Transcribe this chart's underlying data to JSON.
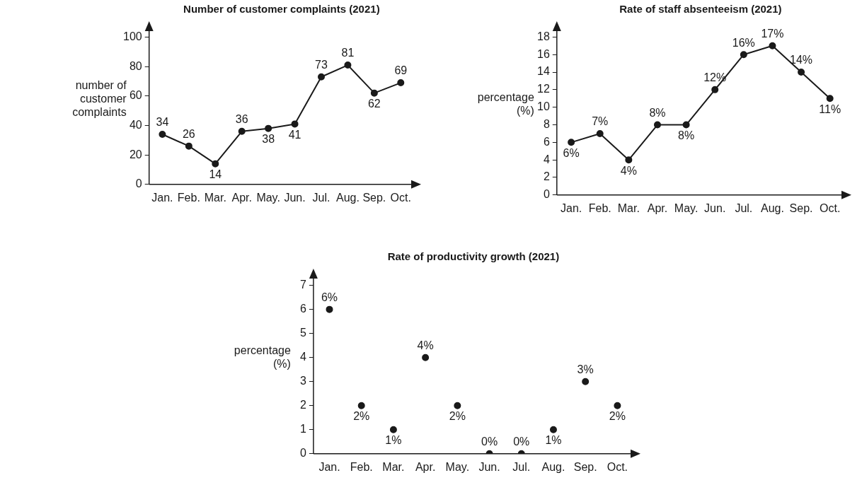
{
  "chart_data": [
    {
      "type": "line",
      "title": "Number of customer complaints (2021)",
      "ylabel": "number of customer complaints",
      "categories": [
        "Jan.",
        "Feb.",
        "Mar.",
        "Apr.",
        "May.",
        "Jun.",
        "Jul.",
        "Aug.",
        "Sep.",
        "Oct."
      ],
      "values": [
        34,
        26,
        14,
        36,
        38,
        41,
        73,
        81,
        62,
        69
      ],
      "color": "#1a1a1a",
      "ylim": [
        0,
        106
      ],
      "yticks": [
        0,
        20,
        40,
        60,
        80,
        100
      ],
      "marker": "circle",
      "line_style": "solid",
      "data_labels": true
    },
    {
      "type": "line",
      "title": "Rate of staff absenteeism (2021)",
      "ylabel": "percentage (%)",
      "categories": [
        "Jan.",
        "Feb.",
        "Mar.",
        "Apr.",
        "May.",
        "Jun.",
        "Jul.",
        "Aug.",
        "Sep.",
        "Oct."
      ],
      "values": [
        6,
        7,
        4,
        8,
        8,
        12,
        16,
        17,
        14,
        11
      ],
      "value_labels": [
        "6%",
        "7%",
        "4%",
        "8%",
        "8%",
        "12%",
        "16%",
        "17%",
        "14%",
        "11%"
      ],
      "color": "#1a1a1a",
      "ylim": [
        0,
        19
      ],
      "yticks": [
        0,
        2,
        4,
        6,
        8,
        10,
        12,
        14,
        16,
        18
      ],
      "marker": "circle",
      "line_style": "solid"
    },
    {
      "type": "scatter",
      "title": "Rate of productivity growth (2021)",
      "ylabel": "percentage (%)",
      "categories": [
        "Jan.",
        "Feb.",
        "Mar.",
        "Apr.",
        "May.",
        "Jun.",
        "Jul.",
        "Aug.",
        "Sep.",
        "Oct."
      ],
      "values": [
        6,
        2,
        1,
        4,
        2,
        0,
        0,
        1,
        3,
        2
      ],
      "value_labels": [
        "6%",
        "2%",
        "1%",
        "4%",
        "2%",
        "0%",
        "0%",
        "1%",
        "3%",
        "2%"
      ],
      "color": "#1a1a1a",
      "ylim": [
        0,
        7.4
      ],
      "yticks": [
        0,
        1,
        2,
        3,
        4,
        5,
        6,
        7
      ],
      "marker": "circle"
    }
  ]
}
